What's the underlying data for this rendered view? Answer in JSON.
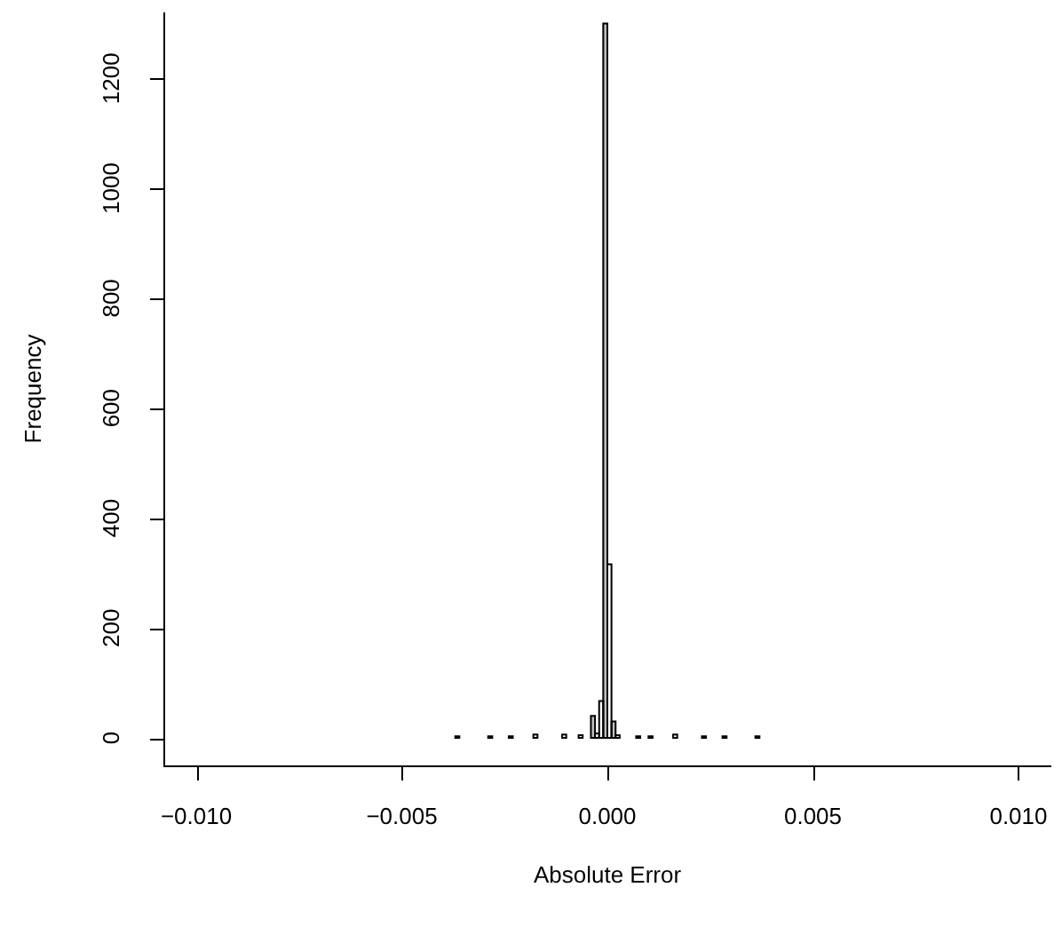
{
  "chart_data": {
    "type": "histogram",
    "xlabel": "Absolute Error",
    "ylabel": "Frequency",
    "bins": [
      -0.01,
      -0.0099,
      -0.0098,
      -0.0097,
      -0.0096,
      -0.0095,
      -0.0094,
      -0.0093,
      -0.0092,
      -0.0091,
      -0.009,
      -0.0089,
      -0.0088,
      -0.0087,
      -0.0086,
      -0.0085,
      -0.0084,
      -0.0083,
      -0.0082,
      -0.0081,
      -0.008,
      -0.0079,
      -0.0078,
      -0.0077,
      -0.0076,
      -0.0075,
      -0.0074,
      -0.0073,
      -0.0072,
      -0.0071,
      -0.007,
      -0.0069,
      -0.0068,
      -0.0067,
      -0.0066,
      -0.0065,
      -0.0064,
      -0.0063,
      -0.0062,
      -0.0061,
      -0.006,
      -0.0059,
      -0.0058,
      -0.0057,
      -0.0056,
      -0.0055,
      -0.0054,
      -0.0053,
      -0.0052,
      -0.0051,
      -0.005,
      -0.0049,
      -0.0048,
      -0.0047,
      -0.0046,
      -0.0045,
      -0.0044,
      -0.0043,
      -0.0042,
      -0.0041,
      -0.004,
      -0.0039,
      -0.0038,
      -0.0037,
      -0.0036,
      -0.0035,
      -0.0034,
      -0.0033,
      -0.0032,
      -0.0031,
      -0.003,
      -0.0029,
      -0.0028,
      -0.0027,
      -0.0026,
      -0.0025,
      -0.0024,
      -0.0023,
      -0.0022,
      -0.0021,
      -0.002,
      -0.0019,
      -0.0018,
      -0.0017,
      -0.0016,
      -0.0015,
      -0.0014,
      -0.0013,
      -0.0012,
      -0.0011,
      -0.001,
      -0.0009,
      -0.0008,
      -0.0007,
      -0.0006,
      -0.0005,
      -0.0004,
      -0.0003,
      -0.0002,
      -0.0001,
      0,
      0.0001,
      0.0002,
      0.0003,
      0.0004,
      0.0005,
      0.0006,
      0.0007,
      0.0008,
      0.0009,
      0.001,
      0.0011,
      0.0012,
      0.0013,
      0.0014,
      0.0015,
      0.0016,
      0.0017,
      0.0018,
      0.0019,
      0.002,
      0.0021,
      0.0022,
      0.0023,
      0.0024,
      0.0025,
      0.0026,
      0.0027,
      0.0028,
      0.0029,
      0.003,
      0.0031,
      0.0032,
      0.0033,
      0.0034,
      0.0035,
      0.0036,
      0.0037,
      0.0038,
      0.0039,
      0.004,
      0.0041,
      0.0042,
      0.0043,
      0.0044,
      0.0045,
      0.0046,
      0.0047,
      0.0048,
      0.0049,
      0.005,
      0.0051,
      0.0052,
      0.0053,
      0.0054,
      0.0055,
      0.0056,
      0.0057,
      0.0058,
      0.0059,
      0.006,
      0.0061,
      0.0062,
      0.0063,
      0.0064,
      0.0065,
      0.0066,
      0.0067,
      0.0068,
      0.0069,
      0.007,
      0.0071,
      0.0072,
      0.0073,
      0.0074,
      0.0075,
      0.0076,
      0.0077,
      0.0078,
      0.0079,
      0.008,
      0.0081,
      0.0082,
      0.0083,
      0.0084,
      0.0085,
      0.0086,
      0.0087,
      0.0088,
      0.0089,
      0.009,
      0.0091,
      0.0092,
      0.0093,
      0.0094,
      0.0095,
      0.0096,
      0.0097,
      0.0098,
      0.0099,
      0.01
    ],
    "values": [
      0,
      0,
      0,
      0,
      0,
      0,
      0,
      0,
      0,
      0,
      0,
      0,
      0,
      0,
      0,
      0,
      0,
      0,
      0,
      0,
      0,
      0,
      0,
      0,
      0,
      0,
      0,
      0,
      0,
      0,
      0,
      0,
      0,
      0,
      0,
      0,
      0,
      0,
      0,
      0,
      0,
      0,
      0,
      0,
      0,
      0,
      0,
      0,
      0,
      0,
      0,
      0,
      0,
      0,
      0,
      0,
      0,
      0,
      0,
      0,
      0,
      0,
      0,
      3,
      0,
      0,
      0,
      0,
      0,
      0,
      0,
      3,
      0,
      0,
      0,
      0,
      3,
      0,
      0,
      0,
      0,
      0,
      6,
      0,
      0,
      0,
      0,
      0,
      0,
      6,
      0,
      0,
      0,
      5,
      0,
      0,
      40,
      8,
      67,
      1300,
      316,
      30,
      5,
      0,
      0,
      0,
      0,
      3,
      0,
      0,
      3,
      0,
      0,
      0,
      0,
      0,
      6,
      0,
      0,
      0,
      0,
      0,
      0,
      3,
      0,
      0,
      0,
      0,
      3,
      0,
      0,
      0,
      0,
      0,
      0,
      0,
      3,
      0,
      0,
      0,
      0,
      0,
      0,
      0,
      0,
      0,
      0,
      0,
      0,
      0,
      0,
      0,
      0,
      0,
      0,
      0,
      0,
      0,
      0,
      0,
      0,
      0,
      0,
      0,
      0,
      0,
      0,
      0,
      0,
      0,
      0,
      0,
      0,
      0,
      0,
      0,
      0,
      0,
      0,
      0,
      0,
      0,
      0,
      0,
      0,
      0,
      0,
      0,
      0,
      0,
      0,
      0,
      0,
      0,
      0,
      0,
      0,
      0,
      0,
      0
    ],
    "colors": [
      "#ffffff",
      "#ffffff",
      "#ffffff",
      "#ffffff",
      "#ffffff",
      "#ffffff",
      "#ffffff",
      "#ffffff",
      "#ffffff",
      "#ffffff",
      "#ffffff",
      "#ffffff",
      "#ffffff",
      "#ffffff",
      "#ffffff",
      "#ffffff",
      "#ffffff",
      "#ffffff",
      "#ffffff",
      "#ffffff",
      "#ffffff",
      "#ffffff",
      "#ffffff",
      "#ffffff",
      "#ffffff",
      "#ffffff",
      "#ffffff",
      "#ffffff",
      "#ffffff",
      "#ffffff",
      "#ffffff",
      "#ffffff",
      "#ffffff",
      "#ffffff",
      "#ffffff",
      "#ffffff",
      "#ffffff",
      "#ffffff",
      "#ffffff",
      "#ffffff",
      "#ffffff",
      "#ffffff",
      "#ffffff",
      "#ffffff",
      "#ffffff",
      "#ffffff",
      "#ffffff",
      "#ffffff",
      "#ffffff",
      "#ffffff",
      "#ffffff",
      "#ffffff",
      "#ffffff",
      "#ffffff",
      "#ffffff",
      "#ffffff",
      "#ffffff",
      "#ffffff",
      "#ffffff",
      "#ffffff",
      "#ffffff",
      "#ffffff",
      "#ffffff",
      "#ffffff",
      "#ffffff",
      "#ffffff",
      "#ffffff",
      "#ffffff",
      "#ffffff",
      "#ffffff",
      "#ffffff",
      "#ffffff",
      "#ffffff",
      "#ffffff",
      "#ffffff",
      "#ffffff",
      "#ffffff",
      "#ffffff",
      "#ffffff",
      "#ffffff",
      "#ffffff",
      "#ffffff",
      "#ffffff",
      "#ffffff",
      "#ffffff",
      "#ffffff",
      "#ffffff",
      "#ffffff",
      "#ffffff",
      "#ffffff",
      "#ffffff",
      "#ffffff",
      "#ffffff",
      "#ffffff",
      "#ffffff",
      "#ffffff",
      "#bebebe",
      "#ffffff",
      "#ffffff",
      "#bebebe",
      "#ffffff",
      "#bebebe",
      "#ffffff",
      "#ffffff",
      "#ffffff",
      "#ffffff",
      "#ffffff",
      "#ffffff",
      "#ffffff",
      "#ffffff",
      "#ffffff",
      "#ffffff",
      "#ffffff",
      "#ffffff",
      "#ffffff",
      "#ffffff",
      "#ffffff",
      "#ffffff",
      "#ffffff",
      "#ffffff",
      "#ffffff",
      "#ffffff",
      "#ffffff",
      "#ffffff",
      "#ffffff",
      "#ffffff",
      "#ffffff",
      "#ffffff",
      "#ffffff",
      "#ffffff",
      "#ffffff",
      "#ffffff",
      "#ffffff",
      "#ffffff",
      "#ffffff",
      "#ffffff",
      "#ffffff",
      "#ffffff",
      "#ffffff",
      "#ffffff",
      "#ffffff",
      "#ffffff",
      "#ffffff",
      "#ffffff",
      "#ffffff",
      "#ffffff",
      "#ffffff",
      "#ffffff",
      "#ffffff",
      "#ffffff",
      "#ffffff",
      "#ffffff",
      "#ffffff",
      "#ffffff",
      "#ffffff",
      "#ffffff",
      "#ffffff",
      "#ffffff",
      "#ffffff",
      "#ffffff",
      "#ffffff",
      "#ffffff",
      "#ffffff",
      "#ffffff",
      "#ffffff",
      "#ffffff",
      "#ffffff",
      "#ffffff",
      "#ffffff",
      "#ffffff",
      "#ffffff",
      "#ffffff",
      "#ffffff",
      "#ffffff",
      "#ffffff",
      "#ffffff",
      "#ffffff",
      "#ffffff",
      "#ffffff",
      "#ffffff",
      "#ffffff",
      "#ffffff",
      "#ffffff",
      "#ffffff",
      "#ffffff",
      "#ffffff",
      "#ffffff",
      "#ffffff",
      "#ffffff",
      "#ffffff",
      "#ffffff",
      "#ffffff",
      "#ffffff",
      "#ffffff",
      "#ffffff",
      "#ffffff",
      "#ffffff",
      "#ffffff",
      "#ffffff",
      "#ffffff"
    ],
    "xlim": [
      -0.0108,
      0.0108
    ],
    "xticks": [
      {
        "value": -0.01,
        "label": "−0.010"
      },
      {
        "value": -0.005,
        "label": "−0.005"
      },
      {
        "value": 0,
        "label": "0.000"
      },
      {
        "value": 0.005,
        "label": "0.005"
      },
      {
        "value": 0.01,
        "label": "0.010"
      }
    ],
    "ylim": [
      -50,
      1320
    ],
    "yticks": [
      0,
      200,
      400,
      600,
      800,
      1000,
      1200
    ],
    "grid": false,
    "legend": false
  }
}
